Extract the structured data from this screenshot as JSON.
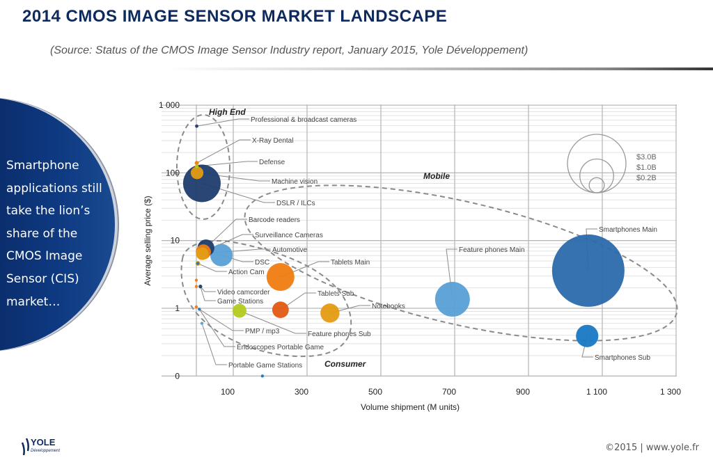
{
  "slide": {
    "title": "2014 CMOS IMAGE SENSOR MARKET LANDSCAPE",
    "subtitle": "(Source: Status of the CMOS Image Sensor Industry report, January 2015, Yole Développement)",
    "callout": "Smartphone applications still take the lion’s share of the CMOS Image Sensor (CIS) market…",
    "copyright": "©2015 | www.yole.fr",
    "logo_text": "YOLE",
    "logo_sub": "Développement"
  },
  "chart_data": {
    "type": "scatter",
    "subtype": "bubble",
    "title": "",
    "xlabel": "Volume shipment (M units)",
    "ylabel": "Average selling price ($)",
    "xlim": [
      -100,
      1300
    ],
    "ylim": [
      0.1,
      1000
    ],
    "yscale": "log",
    "grid": true,
    "x_ticks": [
      100,
      300,
      500,
      700,
      900,
      1100,
      1300
    ],
    "x_tick_labels": [
      "100",
      "300",
      "500",
      "700",
      "900",
      "1 100",
      "1 300"
    ],
    "y_ticks": [
      0.1,
      1,
      10,
      100,
      1000
    ],
    "y_tick_labels": [
      "0",
      "1",
      "10",
      "100",
      "1 000"
    ],
    "size_unit": "revenue ($B)",
    "size_legend": [
      {
        "label": "$3.0B",
        "value": 3.0
      },
      {
        "label": "$1.0B",
        "value": 1.0
      },
      {
        "label": "$0.2B",
        "value": 0.2
      }
    ],
    "groups": [
      {
        "label": "High End"
      },
      {
        "label": "Mobile"
      },
      {
        "label": "Consumer"
      }
    ],
    "colors": {
      "navy": "#1d3c6e",
      "blue": "#2b6aab",
      "light_blue": "#58a0d6",
      "orange": "#f07c10",
      "red_orange": "#e25a12",
      "gold": "#e49c12",
      "lime": "#b3ca1c",
      "bright_blue": "#1878c4"
    },
    "series": [
      {
        "name": "Professional & broadcast cameras",
        "x": 1,
        "y": 490,
        "size": 0.01,
        "color": "#1d3c6e"
      },
      {
        "name": "X-Ray Dental",
        "x": 1,
        "y": 140,
        "size": 0.015,
        "color": "#f07c10"
      },
      {
        "name": "Defense",
        "x": 1,
        "y": 125,
        "size": 0.012,
        "color": "#b3ca1c"
      },
      {
        "name": "DSLR / ILCs",
        "x": 15,
        "y": 70,
        "size": 1.24,
        "color": "#1d3c6e"
      },
      {
        "name": "Machine vision",
        "x": 2,
        "y": 100,
        "size": 0.14,
        "color": "#e49c12"
      },
      {
        "name": "Surveillance Cameras",
        "x": 19,
        "y": 6.8,
        "size": 0.2,
        "color": "#f07c10"
      },
      {
        "name": "Automotive",
        "x": 16,
        "y": 6.4,
        "size": 0.14,
        "color": "#e49c12"
      },
      {
        "name": "Barcode readers",
        "x": 26,
        "y": 7.8,
        "size": 0.25,
        "color": "#1d3c6e"
      },
      {
        "name": "DSC",
        "x": 68,
        "y": 6.1,
        "size": 0.44,
        "color": "#58a0d6"
      },
      {
        "name": "Action Cam",
        "x": 4,
        "y": 4.6,
        "size": 0.02,
        "color": "#e49c12"
      },
      {
        "name": "",
        "x": 4,
        "y": 4.6,
        "size": 0.004,
        "color": "#1878c4"
      },
      {
        "name": "",
        "x": 0,
        "y": 2.6,
        "size": 0.002,
        "color": "#f07c10"
      },
      {
        "name": "",
        "x": 0,
        "y": 2.1,
        "size": 0.002,
        "color": "#f07c10"
      },
      {
        "name": "Video camcorder",
        "x": 11,
        "y": 2.1,
        "size": 0.012,
        "color": "#1d3c6e"
      },
      {
        "name": "Game Stations",
        "x": 11,
        "y": 2.1,
        "size": 0,
        "color": "#1d3c6e"
      },
      {
        "name": "Tablets Main",
        "x": 228,
        "y": 2.9,
        "size": 0.68,
        "color": "#f07c10"
      },
      {
        "name": "Tablets Sub",
        "x": 228,
        "y": 0.95,
        "size": 0.24,
        "color": "#e25a12"
      },
      {
        "name": "Feature phones Sub",
        "x": 117,
        "y": 0.92,
        "size": 0.17,
        "color": "#b3ca1c"
      },
      {
        "name": "Notebooks",
        "x": 362,
        "y": 0.85,
        "size": 0.32,
        "color": "#e49c12"
      },
      {
        "name": "",
        "x": 0,
        "y": 1.05,
        "size": 0.002,
        "color": "#f07c10"
      },
      {
        "name": "PMP / mp3",
        "x": 8,
        "y": 0.97,
        "size": 0.006,
        "color": "#1878c4"
      },
      {
        "name": "Endoscopes Portable Game",
        "x": 8,
        "y": 0.97,
        "size": 0,
        "color": "#1878c4"
      },
      {
        "name": "Portable Game Stations",
        "x": 15,
        "y": 0.6,
        "size": 0.004,
        "color": "#58a0d6"
      },
      {
        "name": "",
        "x": 179,
        "y": 0.1,
        "size": 0.005,
        "color": "#1878c4"
      },
      {
        "name": "Feature phones Main",
        "x": 694,
        "y": 1.36,
        "size": 1.06,
        "color": "#58a0d6"
      },
      {
        "name": "Smartphones Main",
        "x": 1062,
        "y": 3.6,
        "size": 4.6,
        "color": "#2b6aab"
      },
      {
        "name": "Smartphones Sub",
        "x": 1059,
        "y": 0.39,
        "size": 0.44,
        "color": "#1878c4"
      }
    ]
  }
}
